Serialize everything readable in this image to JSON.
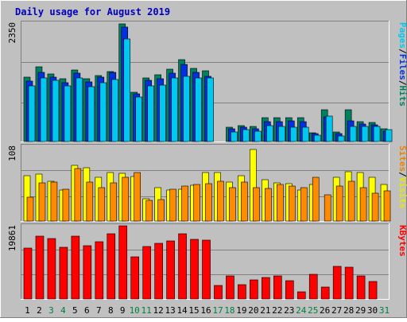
{
  "chart_data": {
    "type": "bar",
    "title": "Daily usage for August 2019",
    "days": [
      "1",
      "2",
      "3",
      "4",
      "5",
      "6",
      "7",
      "8",
      "9",
      "10",
      "11",
      "12",
      "13",
      "14",
      "15",
      "16",
      "17",
      "18",
      "19",
      "20",
      "21",
      "22",
      "23",
      "24",
      "25",
      "26",
      "27",
      "28",
      "29",
      "30",
      "31"
    ],
    "weekend_days": [
      "3",
      "4",
      "10",
      "11",
      "17",
      "18",
      "24",
      "25",
      "31"
    ],
    "panels": [
      {
        "key": "top",
        "max_label": "2350",
        "ylim": [
          0,
          2350
        ],
        "right_label": {
          "parts": [
            {
              "text": "Pages",
              "color": "#00c8f0"
            },
            {
              "text": "/",
              "color": "#000000"
            },
            {
              "text": "Files",
              "color": "#0030e0"
            },
            {
              "text": "/",
              "color": "#000000"
            },
            {
              "text": "Hits",
              "color": "#008060"
            }
          ]
        },
        "series": [
          {
            "name": "Hits",
            "color": "#008060",
            "values": [
              1280,
              1480,
              1340,
              1240,
              1420,
              1240,
              1310,
              1390,
              2330,
              970,
              1260,
              1320,
              1430,
              1630,
              1450,
              1400,
              0,
              290,
              310,
              300,
              480,
              470,
              480,
              480,
              170,
              630,
              190,
              630,
              400,
              380,
              250
            ]
          },
          {
            "name": "Files",
            "color": "#0030e0",
            "values": [
              1200,
              1380,
              1270,
              1170,
              1360,
              1190,
              1270,
              1370,
              2270,
              950,
              1210,
              1250,
              1360,
              1530,
              1380,
              1300,
              0,
              260,
              280,
              250,
              390,
              390,
              410,
              390,
              150,
              490,
              150,
              410,
              340,
              330,
              210
            ]
          },
          {
            "name": "Pages",
            "color": "#00c8f0",
            "values": [
              1110,
              1260,
              1210,
              1110,
              1260,
              1090,
              1170,
              1230,
              2040,
              880,
              1110,
              1120,
              1260,
              1300,
              1260,
              1260,
              0,
              190,
              230,
              210,
              310,
              300,
              290,
              280,
              130,
              500,
              110,
              300,
              300,
              300,
              230
            ]
          }
        ]
      },
      {
        "key": "mid",
        "max_label": "108",
        "ylim": [
          0,
          108
        ],
        "right_label": {
          "parts": [
            {
              "text": "Sites",
              "color": "#f08000"
            },
            {
              "text": "/",
              "color": "#000000"
            },
            {
              "text": "Visits",
              "color": "#e8e800"
            }
          ]
        },
        "series": [
          {
            "name": "Visits",
            "color": "#ffff00",
            "values": [
              65,
              68,
              58,
              45,
              80,
              77,
              63,
              70,
              69,
              64,
              32,
              48,
              45,
              46,
              52,
              70,
              70,
              56,
              66,
              103,
              60,
              55,
              54,
              45,
              53,
              0,
              63,
              71,
              70,
              63,
              53
            ]
          },
          {
            "name": "Sites",
            "color": "#ff8c00",
            "values": [
              35,
              55,
              56,
              46,
              76,
              56,
              48,
              55,
              63,
              70,
              30,
              31,
              46,
              51,
              53,
              54,
              58,
              48,
              56,
              48,
              47,
              53,
              50,
              48,
              63,
              38,
              50,
              58,
              48,
              40,
              44
            ]
          }
        ]
      },
      {
        "key": "bot",
        "max_label": "19861",
        "ylim": [
          0,
          19861
        ],
        "right_label": {
          "parts": [
            {
              "text": "KBytes",
              "color": "#ff0000"
            }
          ]
        },
        "series": [
          {
            "name": "KBytes",
            "color": "#ff0000",
            "values": [
              13800,
              17100,
              16500,
              14100,
              17000,
              14400,
              15600,
              17600,
              19861,
              11400,
              14300,
              15200,
              15700,
              17600,
              16200,
              16000,
              3600,
              6300,
              3800,
              5200,
              5800,
              6200,
              5000,
              2000,
              6800,
              3200,
              8900,
              8700,
              6300,
              4700,
              0
            ]
          }
        ]
      }
    ]
  }
}
